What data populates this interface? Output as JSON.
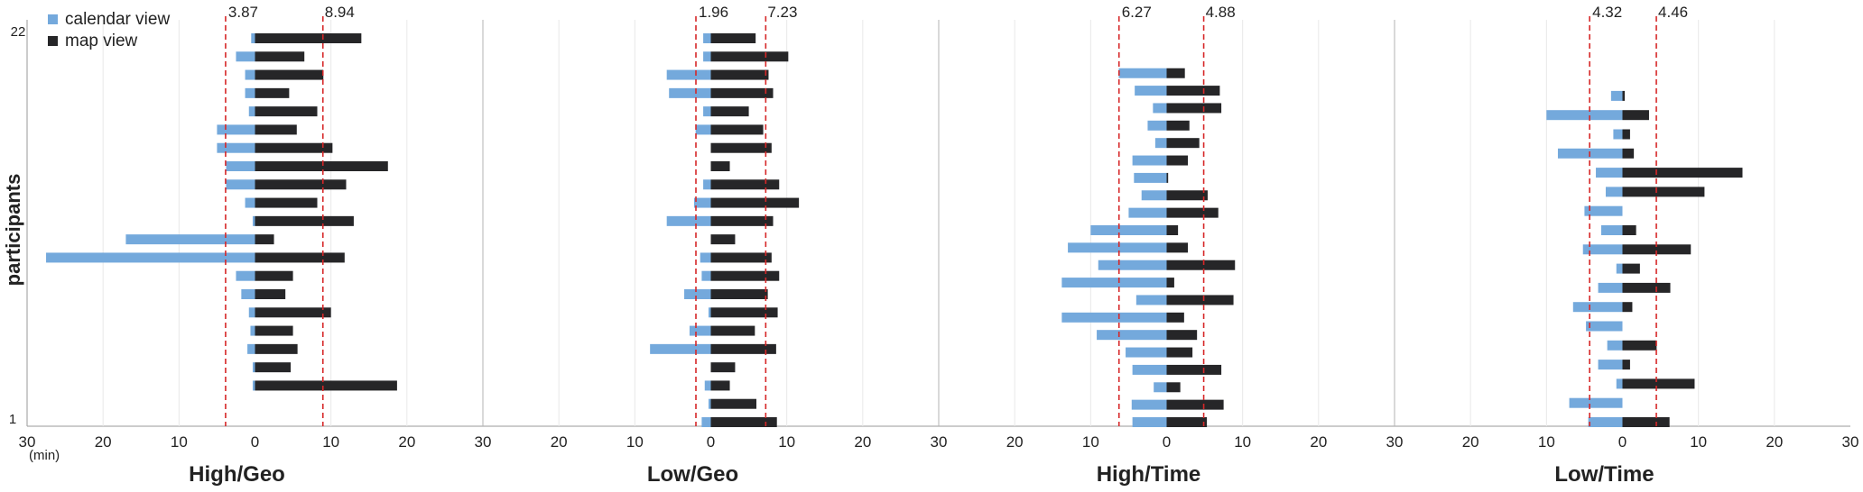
{
  "chart_data": {
    "type": "bar",
    "orientation": "horizontal-diverging",
    "ylabel": "participants",
    "xunit": "(min)",
    "y_tick_labels": [
      "1",
      "22"
    ],
    "x_ticks": [
      30,
      20,
      10,
      0,
      10,
      20,
      30
    ],
    "xlim": [
      -30,
      30
    ],
    "grid": true,
    "legend": {
      "placement": "top-left",
      "items": [
        {
          "name": "calendar view",
          "color": "#74a9dc"
        },
        {
          "name": "map view",
          "color": "#262628"
        }
      ]
    },
    "colors": {
      "calendar": "#74a9dc",
      "map": "#262628",
      "reference_line": "#d62728"
    },
    "panels": [
      {
        "title": "High/Geo",
        "reference_values": {
          "calendar": 3.87,
          "map": 8.94
        },
        "reference_labels": {
          "calendar": "3.87",
          "map": "8.94"
        },
        "calendar": [
          0.5,
          2.5,
          1.3,
          1.3,
          0.8,
          5.0,
          5.0,
          3.8,
          3.8,
          1.3,
          0.3,
          17.0,
          27.5,
          2.5,
          1.8,
          0.8,
          0.6,
          1.0,
          0.3,
          0.3,
          0.0,
          0.0
        ],
        "map": [
          14.0,
          6.5,
          9.0,
          4.5,
          8.2,
          5.5,
          10.2,
          17.5,
          12.0,
          8.2,
          13.0,
          2.5,
          11.8,
          5.0,
          4.0,
          10.0,
          5.0,
          5.6,
          4.7,
          18.7,
          0.0,
          0.0
        ]
      },
      {
        "title": "Low/Geo",
        "reference_values": {
          "calendar": 1.96,
          "map": 7.23
        },
        "reference_labels": {
          "calendar": "1.96",
          "map": "7.23"
        },
        "calendar": [
          1.0,
          1.0,
          5.8,
          5.5,
          1.0,
          2.0,
          0.0,
          0.0,
          1.0,
          2.2,
          5.8,
          0.0,
          1.4,
          1.2,
          3.5,
          0.3,
          2.8,
          8.0,
          0.0,
          0.8,
          0.3,
          1.2
        ],
        "map": [
          5.9,
          10.2,
          7.6,
          8.2,
          5.0,
          6.9,
          8.0,
          2.5,
          9.0,
          11.6,
          8.2,
          3.2,
          8.0,
          9.0,
          7.5,
          8.8,
          5.8,
          8.6,
          3.2,
          2.5,
          6.0,
          8.7
        ]
      },
      {
        "title": "High/Time",
        "reference_values": {
          "calendar": 6.27,
          "map": 4.88
        },
        "reference_labels": {
          "calendar": "6.27",
          "map": "4.88"
        },
        "calendar": [
          0.0,
          0.0,
          6.3,
          4.2,
          1.8,
          2.5,
          1.5,
          4.5,
          4.3,
          3.3,
          5.0,
          10.0,
          13.0,
          9.0,
          13.8,
          4.0,
          13.8,
          9.2,
          5.4,
          4.5,
          1.7,
          4.6,
          4.5
        ],
        "map": [
          0.0,
          0.0,
          2.4,
          7.0,
          7.2,
          3.0,
          4.3,
          2.8,
          0.2,
          5.4,
          6.8,
          1.5,
          2.8,
          9.0,
          1.0,
          8.8,
          2.3,
          4.0,
          3.4,
          7.2,
          1.8,
          7.5,
          5.3
        ]
      },
      {
        "title": "Low/Time",
        "reference_values": {
          "calendar": 4.32,
          "map": 4.46
        },
        "reference_labels": {
          "calendar": "4.32",
          "map": "4.46"
        },
        "calendar": [
          0.0,
          0.0,
          0.0,
          1.5,
          10.0,
          1.2,
          8.5,
          3.5,
          2.2,
          5.0,
          2.8,
          5.2,
          0.8,
          3.2,
          6.5,
          4.8,
          2.0,
          3.2,
          0.8,
          7.0,
          4.5
        ],
        "map": [
          0.0,
          0.0,
          0.0,
          0.3,
          3.5,
          1.0,
          1.5,
          15.8,
          10.8,
          0.0,
          1.8,
          9.0,
          2.3,
          6.3,
          1.3,
          0.0,
          4.5,
          1.0,
          9.5,
          0.0,
          6.2
        ]
      }
    ]
  }
}
